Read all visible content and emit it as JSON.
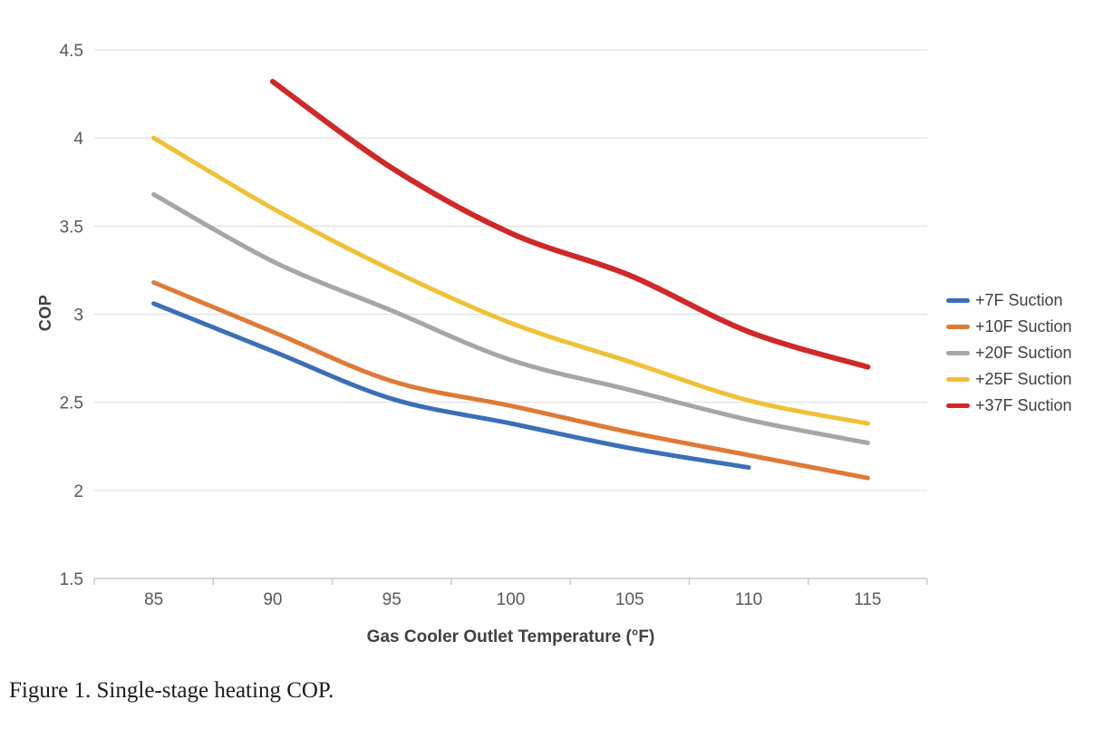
{
  "figure": {
    "caption": "Figure 1. Single-stage heating COP."
  },
  "chart_data": {
    "type": "line",
    "x": [
      85,
      90,
      95,
      100,
      105,
      110,
      115
    ],
    "xlabel": "Gas Cooler Outlet Temperature (°F)",
    "ylabel": "COP",
    "ylim": [
      1.5,
      4.5
    ],
    "ytick_step": 0.5,
    "yticks": [
      "4.5",
      "4",
      "3.5",
      "3",
      "2.5",
      "2",
      "1.5"
    ],
    "grid": true,
    "legend_position": "right",
    "smoothed_lines": true,
    "series": [
      {
        "name": "+7F Suction",
        "color": "#3A6FB8",
        "stroke_width": 5,
        "values": [
          3.06,
          2.79,
          2.52,
          2.38,
          2.24,
          2.13,
          null
        ]
      },
      {
        "name": "+10F Suction",
        "color": "#DF7A36",
        "stroke_width": 5,
        "values": [
          3.18,
          2.9,
          2.62,
          2.48,
          2.33,
          2.2,
          2.07
        ]
      },
      {
        "name": "+20F Suction",
        "color": "#A6A6A6",
        "stroke_width": 5,
        "values": [
          3.68,
          3.3,
          3.02,
          2.74,
          2.57,
          2.4,
          2.27
        ]
      },
      {
        "name": "+25F Suction",
        "color": "#EFC137",
        "stroke_width": 5,
        "values": [
          4.0,
          3.6,
          3.25,
          2.95,
          2.73,
          2.51,
          2.38
        ]
      },
      {
        "name": "+37F Suction",
        "color": "#D02828",
        "stroke_width": 6,
        "values": [
          null,
          4.32,
          3.83,
          3.46,
          3.22,
          2.9,
          2.7
        ]
      }
    ]
  },
  "colors": {
    "gridline": "#DCDCDC",
    "axis_line": "#C9C9C9",
    "axis_text": "#595959",
    "title_text": "#404040",
    "caption_text": "#1c1c1c"
  }
}
